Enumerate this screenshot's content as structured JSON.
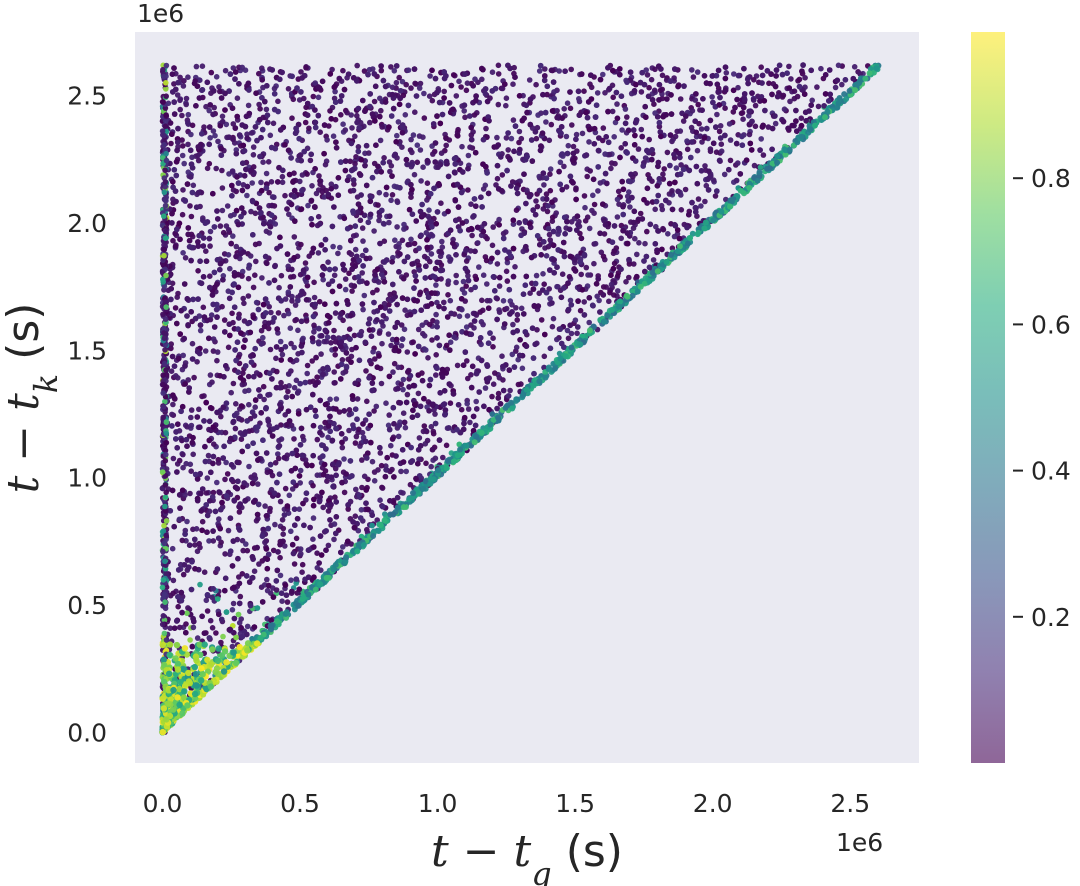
{
  "chart_data": {
    "type": "scatter",
    "title": "",
    "x_axis": {
      "label": "t − t",
      "label_subscript": "q",
      "label_unit": " (s)",
      "range": [
        -100000,
        2750000
      ],
      "ticks": [
        0,
        500000,
        1000000,
        1500000,
        2000000,
        2500000
      ],
      "tick_labels": [
        "0.0",
        "0.5",
        "1.0",
        "1.5",
        "2.0",
        "2.5"
      ],
      "offset_text": "1e6"
    },
    "y_axis": {
      "label": "t − t",
      "label_subscript": "k",
      "label_unit": " (s)",
      "range": [
        -120000,
        2750000
      ],
      "ticks": [
        0,
        500000,
        1000000,
        1500000,
        2000000,
        2500000
      ],
      "tick_labels": [
        "0.0",
        "0.5",
        "1.0",
        "1.5",
        "2.0",
        "2.5"
      ],
      "offset_text": "1e6"
    },
    "colorbar": {
      "colormap": "viridis",
      "range": [
        0.0,
        1.0
      ],
      "ticks": [
        0.2,
        0.4,
        0.6,
        0.8
      ],
      "tick_labels": [
        "0.2",
        "0.4",
        "0.6",
        "0.8"
      ]
    },
    "grid": false,
    "background_color": "#eaeaf2",
    "data_region": {
      "description_constraint": "points lie in triangle 0 <= x <= y <= 2620000",
      "max_value": 2620000,
      "approx_point_count": 6000,
      "color_value_pattern": "mostly near 0 (dark purple); higher (green/yellow) near the diagonal x = y and near x = 0, especially at small y"
    }
  },
  "layout_meta": {
    "point_opacity": 0.6
  }
}
